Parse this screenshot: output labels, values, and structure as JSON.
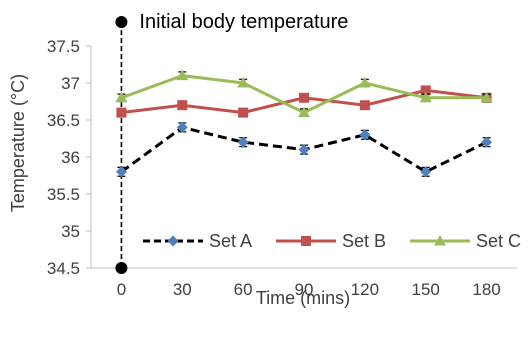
{
  "chart_data": {
    "type": "line",
    "title": "",
    "xlabel": "Time (mins)",
    "ylabel": "Temperature (°C)",
    "x": [
      0,
      30,
      60,
      90,
      120,
      150,
      180
    ],
    "x_ticks": [
      "0",
      "30",
      "60",
      "90",
      "120",
      "150",
      "180"
    ],
    "ylim": [
      34.5,
      37.5
    ],
    "y_ticks": [
      "34.5",
      "35",
      "35.5",
      "36",
      "36.5",
      "37",
      "37.5"
    ],
    "grid": false,
    "legend_position": "bottom",
    "annotation": {
      "text": "Initial body temperature",
      "x": 0,
      "y_range": [
        34.5,
        37.5
      ]
    },
    "series": [
      {
        "name": "Set A",
        "values": [
          35.8,
          36.4,
          36.2,
          36.1,
          36.3,
          35.8,
          36.2
        ],
        "error": 0.06,
        "color": "#000000",
        "marker_color": "#4F81BD",
        "marker": "diamond",
        "line_style": "dashed"
      },
      {
        "name": "Set B",
        "values": [
          36.6,
          36.7,
          36.6,
          36.8,
          36.7,
          36.9,
          36.8
        ],
        "error": 0.04,
        "color": "#C0504D",
        "marker_color": "#C0504D",
        "marker": "square",
        "line_style": "solid"
      },
      {
        "name": "Set C",
        "values": [
          36.8,
          37.1,
          37.0,
          36.6,
          37.0,
          36.8,
          36.8
        ],
        "error": 0.05,
        "color": "#9BBB59",
        "marker_color": "#9BBB59",
        "marker": "triangle",
        "line_style": "solid"
      }
    ]
  }
}
